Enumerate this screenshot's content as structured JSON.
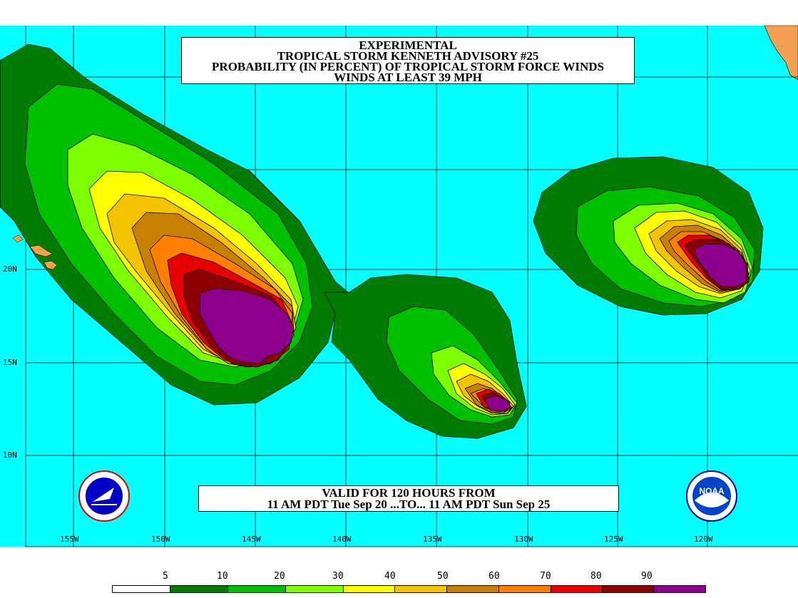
{
  "title": {
    "line1": "EXPERIMENTAL",
    "line2": "TROPICAL STORM KENNETH ADVISORY #25",
    "line3": "PROBABILITY (IN PERCENT) OF TROPICAL STORM FORCE WINDS",
    "line4": "WINDS AT LEAST 39 MPH"
  },
  "valid": {
    "line1": "VALID FOR 120 HOURS FROM",
    "line2": "11 AM PDT Tue Sep 20 ...TO... 11 AM PDT Sun Sep 25"
  },
  "latitudes": [
    "20N",
    "15N",
    "10N"
  ],
  "longitudes": [
    "155W",
    "150W",
    "145W",
    "140W",
    "135W",
    "130W",
    "125W",
    "120W"
  ],
  "legend": {
    "labels": [
      "5",
      "10",
      "20",
      "30",
      "40",
      "50",
      "60",
      "70",
      "80",
      "90"
    ],
    "colors": [
      "#ffffff",
      "#007d00",
      "#00c100",
      "#7dff00",
      "#ffff00",
      "#f5c200",
      "#c88000",
      "#ff8000",
      "#e60000",
      "#8c0000",
      "#8c008c"
    ]
  },
  "colors": {
    "ocean": "#00ffff",
    "land": "#f5a050"
  },
  "logos": {
    "left": "nws-logo",
    "right": "noaa-logo",
    "right_text": "NOAA"
  }
}
